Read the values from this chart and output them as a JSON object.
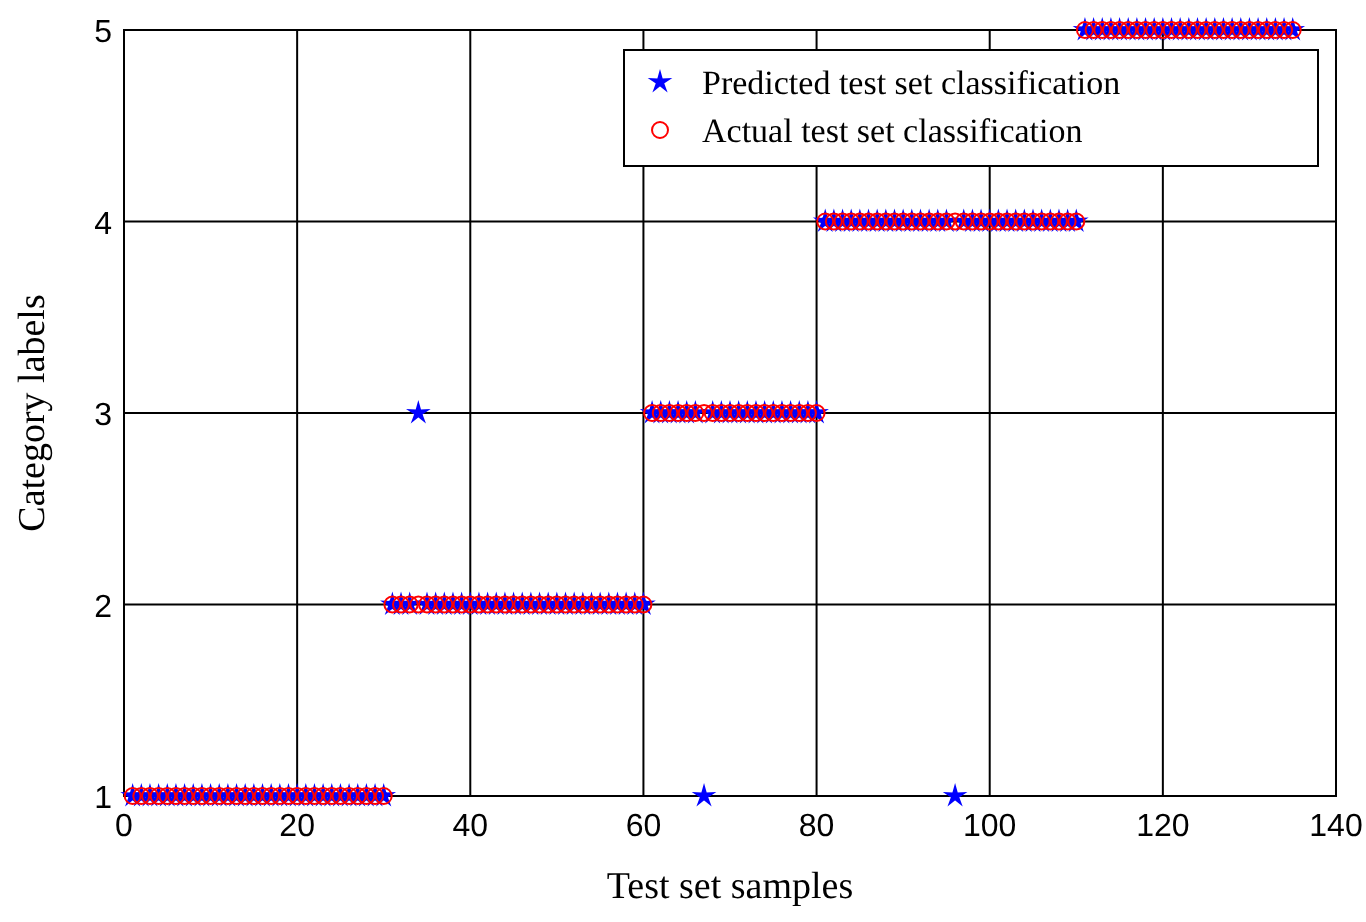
{
  "chart_data": {
    "type": "scatter",
    "xlabel": "Test set samples",
    "ylabel": "Category labels",
    "x": [
      1,
      2,
      3,
      4,
      5,
      6,
      7,
      8,
      9,
      10,
      11,
      12,
      13,
      14,
      15,
      16,
      17,
      18,
      19,
      20,
      21,
      22,
      23,
      24,
      25,
      26,
      27,
      28,
      29,
      30,
      31,
      32,
      33,
      34,
      35,
      36,
      37,
      38,
      39,
      40,
      41,
      42,
      43,
      44,
      45,
      46,
      47,
      48,
      49,
      50,
      51,
      52,
      53,
      54,
      55,
      56,
      57,
      58,
      59,
      60,
      61,
      62,
      63,
      64,
      65,
      66,
      67,
      68,
      69,
      70,
      71,
      72,
      73,
      74,
      75,
      76,
      77,
      78,
      79,
      80,
      81,
      82,
      83,
      84,
      85,
      86,
      87,
      88,
      89,
      90,
      91,
      92,
      93,
      94,
      95,
      96,
      97,
      98,
      99,
      100,
      101,
      102,
      103,
      104,
      105,
      106,
      107,
      108,
      109,
      110,
      111,
      112,
      113,
      114,
      115,
      116,
      117,
      118,
      119,
      120,
      121,
      122,
      123,
      124,
      125,
      126,
      127,
      128,
      129,
      130,
      131,
      132,
      133,
      134,
      135
    ],
    "series": [
      {
        "name": "Predicted test set classification",
        "color": "#0000ff",
        "marker": "star",
        "values": [
          1,
          1,
          1,
          1,
          1,
          1,
          1,
          1,
          1,
          1,
          1,
          1,
          1,
          1,
          1,
          1,
          1,
          1,
          1,
          1,
          1,
          1,
          1,
          1,
          1,
          1,
          1,
          1,
          1,
          1,
          2,
          2,
          2,
          3,
          2,
          2,
          2,
          2,
          2,
          2,
          2,
          2,
          2,
          2,
          2,
          2,
          2,
          2,
          2,
          2,
          2,
          2,
          2,
          2,
          2,
          2,
          2,
          2,
          2,
          2,
          3,
          3,
          3,
          3,
          3,
          3,
          1,
          3,
          3,
          3,
          3,
          3,
          3,
          3,
          3,
          3,
          3,
          3,
          3,
          3,
          4,
          4,
          4,
          4,
          4,
          4,
          4,
          4,
          4,
          4,
          4,
          4,
          4,
          4,
          4,
          1,
          4,
          4,
          4,
          4,
          4,
          4,
          4,
          4,
          4,
          4,
          4,
          4,
          4,
          4,
          5,
          5,
          5,
          5,
          5,
          5,
          5,
          5,
          5,
          5,
          5,
          5,
          5,
          5,
          5,
          5,
          5,
          5,
          5,
          5,
          5,
          5,
          5,
          5,
          5
        ]
      },
      {
        "name": "Actual test set classification",
        "color": "#ff0000",
        "marker": "circle",
        "values": [
          1,
          1,
          1,
          1,
          1,
          1,
          1,
          1,
          1,
          1,
          1,
          1,
          1,
          1,
          1,
          1,
          1,
          1,
          1,
          1,
          1,
          1,
          1,
          1,
          1,
          1,
          1,
          1,
          1,
          1,
          2,
          2,
          2,
          2,
          2,
          2,
          2,
          2,
          2,
          2,
          2,
          2,
          2,
          2,
          2,
          2,
          2,
          2,
          2,
          2,
          2,
          2,
          2,
          2,
          2,
          2,
          2,
          2,
          2,
          2,
          3,
          3,
          3,
          3,
          3,
          3,
          3,
          3,
          3,
          3,
          3,
          3,
          3,
          3,
          3,
          3,
          3,
          3,
          3,
          3,
          4,
          4,
          4,
          4,
          4,
          4,
          4,
          4,
          4,
          4,
          4,
          4,
          4,
          4,
          4,
          4,
          4,
          4,
          4,
          4,
          4,
          4,
          4,
          4,
          4,
          4,
          4,
          4,
          4,
          4,
          5,
          5,
          5,
          5,
          5,
          5,
          5,
          5,
          5,
          5,
          5,
          5,
          5,
          5,
          5,
          5,
          5,
          5,
          5,
          5,
          5,
          5,
          5,
          5,
          5
        ]
      }
    ],
    "xlim": [
      0,
      140
    ],
    "xticks": [
      0,
      20,
      40,
      60,
      80,
      100,
      120,
      140
    ],
    "ylim": [
      1,
      5
    ],
    "yticks": [
      1,
      2,
      3,
      4,
      5
    ],
    "grid": true,
    "legend": "top right"
  }
}
